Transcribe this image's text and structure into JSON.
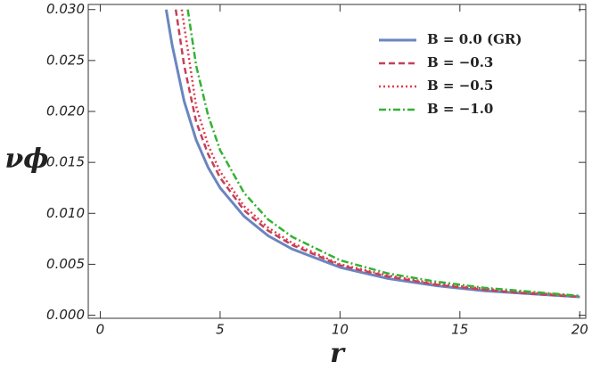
{
  "chart_data": {
    "type": "line",
    "x_label": "r",
    "y_label": "νϕ",
    "xlim": [
      -0.5,
      20.25
    ],
    "ylim": [
      -0.0003,
      0.0305
    ],
    "xticks": [
      0,
      5,
      10,
      15,
      20
    ],
    "yticks": [
      {
        "value": 0,
        "label": "0.000"
      },
      0.005,
      {
        "value": 0.01,
        "label": "0.010"
      },
      0.015,
      {
        "value": 0.02,
        "label": "0.020"
      },
      0.025,
      {
        "value": 0.03,
        "label": "0.030"
      }
    ],
    "legend": "upper right",
    "series": [
      {
        "name": "B =  0.0 (GR)",
        "color": "#6a86bf",
        "dash": "solid",
        "x": [
          2.75,
          3,
          3.5,
          4,
          4.5,
          5,
          6,
          7,
          8,
          10,
          12,
          14,
          16,
          18,
          20
        ],
        "values": [
          0.03,
          0.0265,
          0.021,
          0.0172,
          0.0145,
          0.0125,
          0.0097,
          0.0078,
          0.0065,
          0.0047,
          0.0036,
          0.0029,
          0.0024,
          0.0021,
          0.0018
        ]
      },
      {
        "name": "B = −0.3",
        "color": "#c2415a",
        "dash": "dashed",
        "x": [
          3.15,
          3.5,
          4,
          4.5,
          5,
          6,
          7,
          8,
          10,
          12,
          14,
          16,
          18,
          20
        ],
        "values": [
          0.03,
          0.0245,
          0.019,
          0.0158,
          0.0135,
          0.0103,
          0.0083,
          0.0069,
          0.0049,
          0.0038,
          0.003,
          0.0025,
          0.0021,
          0.0018
        ]
      },
      {
        "name": "B = −0.5",
        "color": "#e03b4b",
        "dash": "dotted",
        "x": [
          3.4,
          4,
          4.5,
          5,
          6,
          7,
          8,
          10,
          12,
          14,
          16,
          18,
          20
        ],
        "values": [
          0.03,
          0.0205,
          0.0167,
          0.0141,
          0.0107,
          0.0086,
          0.0071,
          0.005,
          0.0039,
          0.0031,
          0.0026,
          0.0022,
          0.0019
        ]
      },
      {
        "name": "B = −1.0",
        "color": "#33b233",
        "dash": "dashdot",
        "x": [
          3.65,
          4,
          4.5,
          5,
          6,
          7,
          8,
          10,
          12,
          14,
          16,
          18,
          20
        ],
        "values": [
          0.03,
          0.0245,
          0.0196,
          0.0162,
          0.012,
          0.0094,
          0.0077,
          0.0054,
          0.0041,
          0.0033,
          0.0027,
          0.0023,
          0.0019
        ]
      }
    ]
  }
}
